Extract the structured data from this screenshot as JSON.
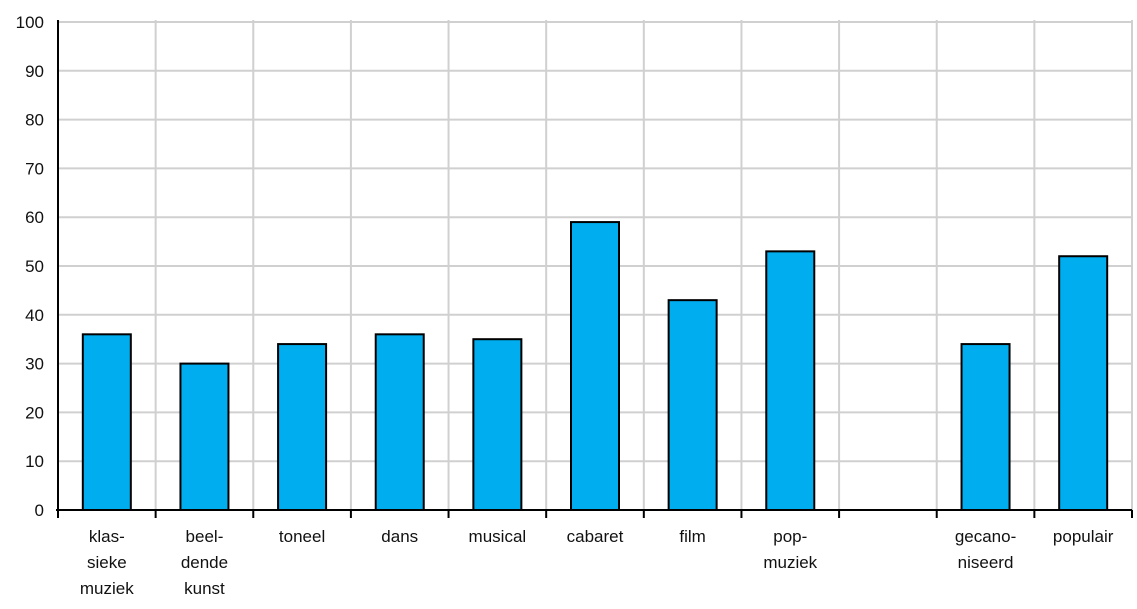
{
  "chart_data": {
    "type": "bar",
    "title": "",
    "xlabel": "",
    "ylabel": "",
    "ylim": [
      0,
      100
    ],
    "yticks": [
      0,
      10,
      20,
      30,
      40,
      50,
      60,
      70,
      80,
      90,
      100
    ],
    "categories": [
      [
        "klas-",
        "sieke",
        "muziek"
      ],
      [
        "beel-",
        "dende",
        "kunst"
      ],
      [
        "toneel"
      ],
      [
        "dans"
      ],
      [
        "musical"
      ],
      [
        "cabaret"
      ],
      [
        "film"
      ],
      [
        "pop-",
        "muziek"
      ],
      [
        ""
      ],
      [
        "gecano-",
        "niseerd"
      ],
      [
        "populair"
      ]
    ],
    "values": [
      36,
      30,
      34,
      36,
      35,
      59,
      43,
      53,
      null,
      34,
      52
    ],
    "grid": true,
    "colors": {
      "bar": "#00AEEF",
      "bar_outline": "#000000",
      "grid": "#d0d0d0",
      "axis": "#000000"
    }
  }
}
